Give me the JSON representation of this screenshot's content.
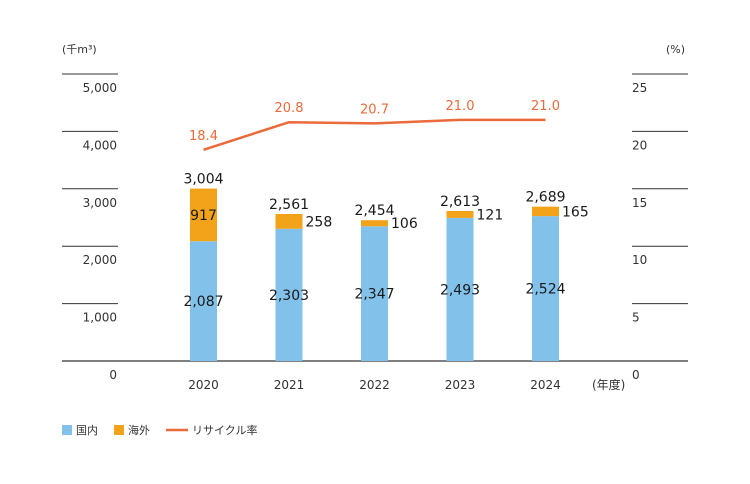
{
  "chart_data": {
    "type": "bar",
    "stacked": true,
    "categories": [
      "2020",
      "2021",
      "2022",
      "2023",
      "2024"
    ],
    "xlabel_unit": "(年度)",
    "left_axis": {
      "unit": "(千m³)",
      "ylim": [
        0,
        5000
      ],
      "ticks": [
        "0",
        "1,000",
        "2,000",
        "3,000",
        "4,000",
        "5,000"
      ],
      "tick_values": [
        0,
        1000,
        2000,
        3000,
        4000,
        5000
      ]
    },
    "right_axis": {
      "unit": "(%)",
      "ylim": [
        0,
        25
      ],
      "ticks": [
        "0",
        "5",
        "10",
        "15",
        "20",
        "25"
      ],
      "tick_values": [
        0,
        5,
        10,
        15,
        20,
        25
      ]
    },
    "series": [
      {
        "name": "国内",
        "kind": "bar",
        "color": "#82c2ea",
        "values": [
          2087,
          2303,
          2347,
          2493,
          2524
        ],
        "labels": [
          "2,087",
          "2,303",
          "2,347",
          "2,493",
          "2,524"
        ]
      },
      {
        "name": "海外",
        "kind": "bar",
        "color": "#f3a31a",
        "values": [
          917,
          258,
          106,
          121,
          165
        ],
        "labels": [
          "917",
          "258",
          "106",
          "121",
          "165"
        ]
      },
      {
        "name": "リサイクル率",
        "kind": "line",
        "axis": "right",
        "color": "#eb6a3a",
        "values": [
          18.4,
          20.8,
          20.7,
          21.0,
          21.0
        ],
        "labels": [
          "18.4",
          "20.8",
          "20.7",
          "21.0",
          "21.0"
        ]
      }
    ],
    "totals": {
      "values": [
        3004,
        2561,
        2454,
        2613,
        2689
      ],
      "labels": [
        "3,004",
        "2,561",
        "2,454",
        "2,613",
        "2,689"
      ]
    },
    "grid": true,
    "legend_position": "bottom-left"
  }
}
